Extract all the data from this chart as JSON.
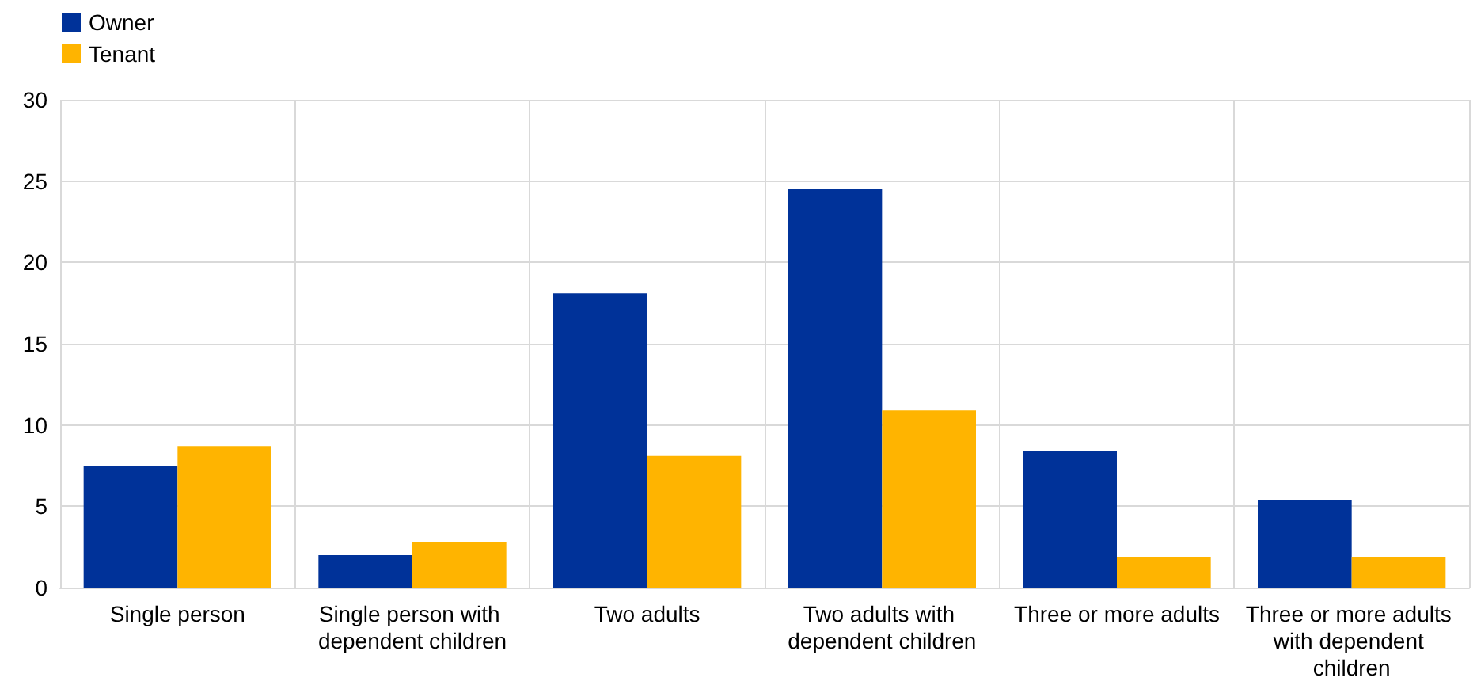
{
  "chart_data": {
    "type": "bar",
    "categories": [
      "Single person",
      "Single person with dependent children",
      "Two adults",
      "Two adults with dependent children",
      "Three or more adults",
      "Three or more adults with dependent children"
    ],
    "series": [
      {
        "name": "Owner",
        "color": "#003299",
        "values": [
          7.5,
          2.0,
          18.1,
          24.5,
          8.4,
          5.4
        ]
      },
      {
        "name": "Tenant",
        "color": "#ffb400",
        "values": [
          8.7,
          2.8,
          8.1,
          10.9,
          1.9,
          1.9
        ]
      }
    ],
    "ylim": [
      0,
      30
    ],
    "yticks": [
      0,
      5,
      10,
      15,
      20,
      25,
      30
    ],
    "grid": true,
    "legend": "top left"
  }
}
